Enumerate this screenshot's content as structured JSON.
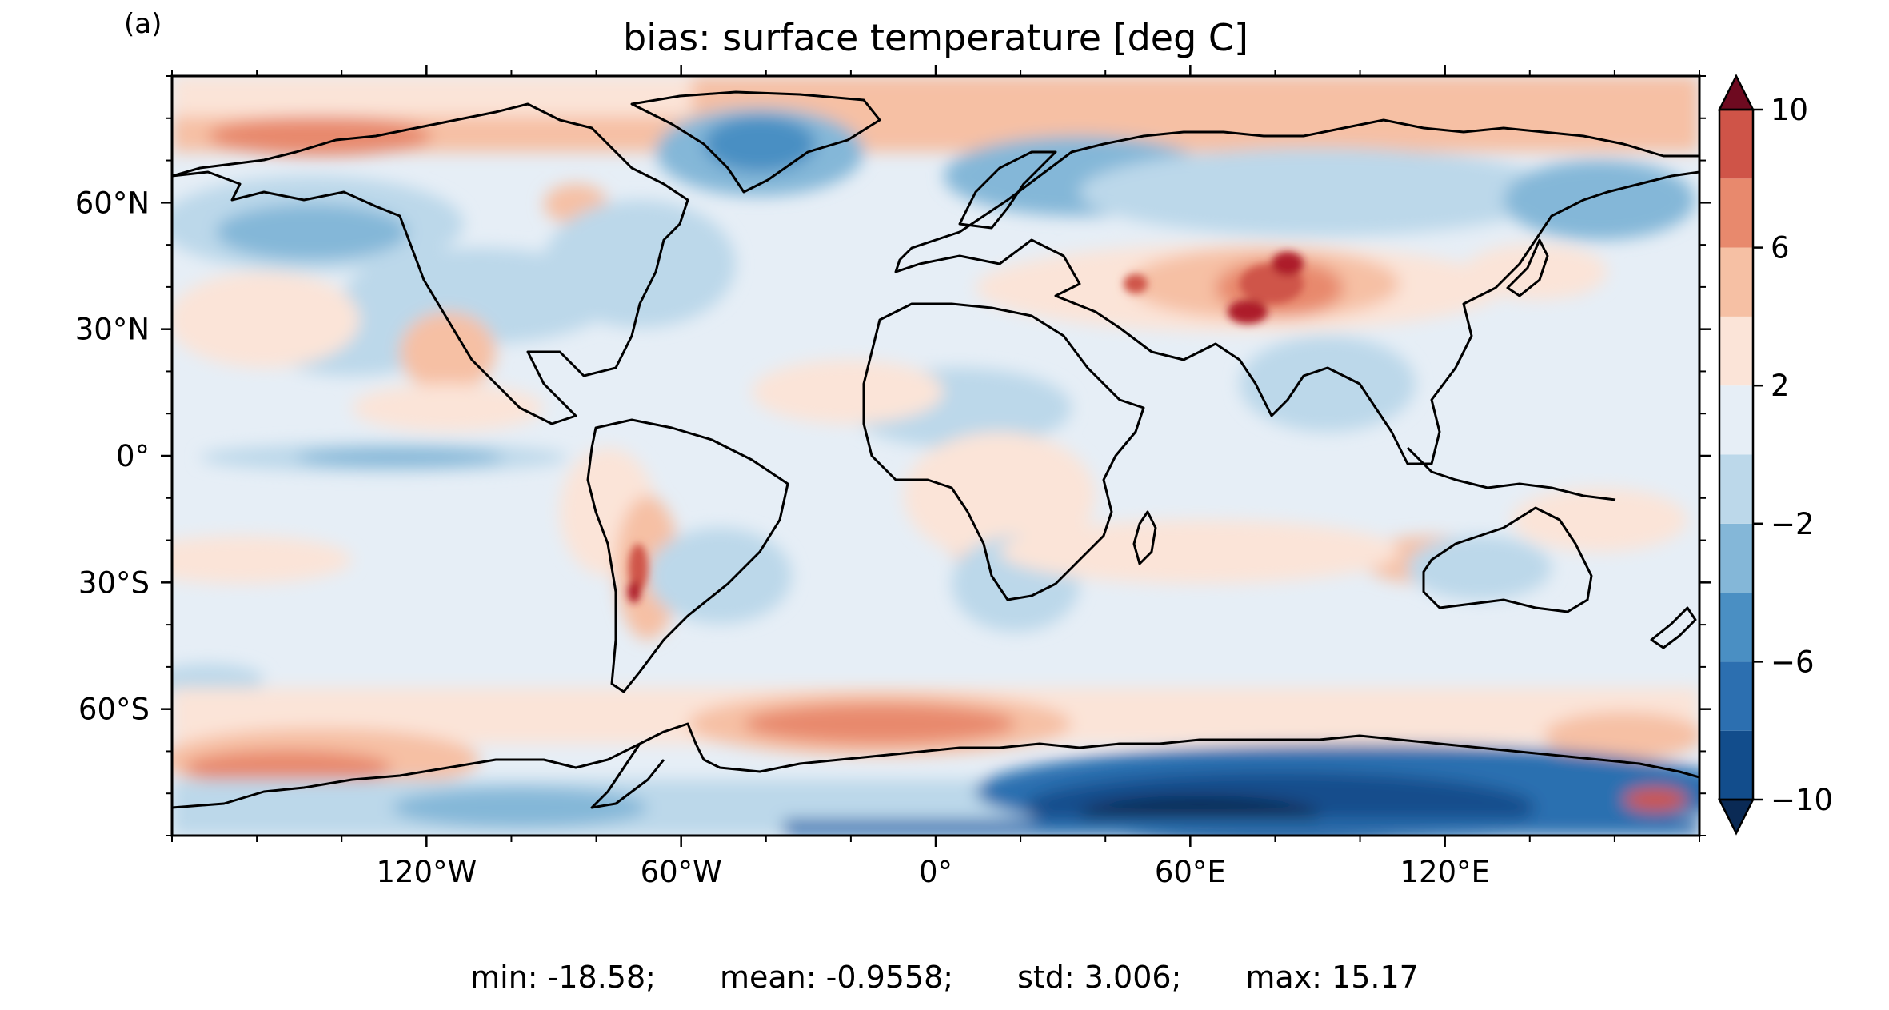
{
  "panel_label": "(a)",
  "title": "bias: surface temperature [deg C]",
  "map": {
    "projection": "PlateCarree",
    "extent": {
      "lon": [
        -180,
        180
      ],
      "lat": [
        -90,
        90
      ]
    },
    "x_ticks": [
      {
        "value": -120,
        "label": "120°W"
      },
      {
        "value": -60,
        "label": "60°W"
      },
      {
        "value": 0,
        "label": "0°"
      },
      {
        "value": 60,
        "label": "60°E"
      },
      {
        "value": 120,
        "label": "120°E"
      }
    ],
    "y_ticks": [
      {
        "value": 60,
        "label": "60°N"
      },
      {
        "value": 30,
        "label": "30°N"
      },
      {
        "value": 0,
        "label": "0°"
      },
      {
        "value": -30,
        "label": "30°S"
      },
      {
        "value": -60,
        "label": "60°S"
      }
    ],
    "coastlines": true,
    "colormap": "RdBu_r"
  },
  "colorbar": {
    "levels": [
      -10,
      -8,
      -6,
      -4,
      -2,
      0,
      2,
      4,
      6,
      8,
      10
    ],
    "tick_labels": [
      {
        "value": 10,
        "label": "10"
      },
      {
        "value": 6,
        "label": "6"
      },
      {
        "value": 2,
        "label": "2"
      },
      {
        "value": -2,
        "label": "−2"
      },
      {
        "value": -6,
        "label": "−6"
      },
      {
        "value": -10,
        "label": "−10"
      }
    ],
    "extend": "both",
    "colors": [
      "#124d8c",
      "#2c6fb0",
      "#4a8fc3",
      "#84b7d8",
      "#bcd8ea",
      "#e6eef6",
      "#fbe4d8",
      "#f6c0a4",
      "#e8896d",
      "#cf5448",
      "#ad1d2b"
    ],
    "under_color": "#0a2a55",
    "over_color": "#6e0a20"
  },
  "stats": {
    "min": "min: -18.58;",
    "mean": "mean: -0.9558;",
    "std": "std: 3.006;",
    "max": "max: 15.17"
  }
}
